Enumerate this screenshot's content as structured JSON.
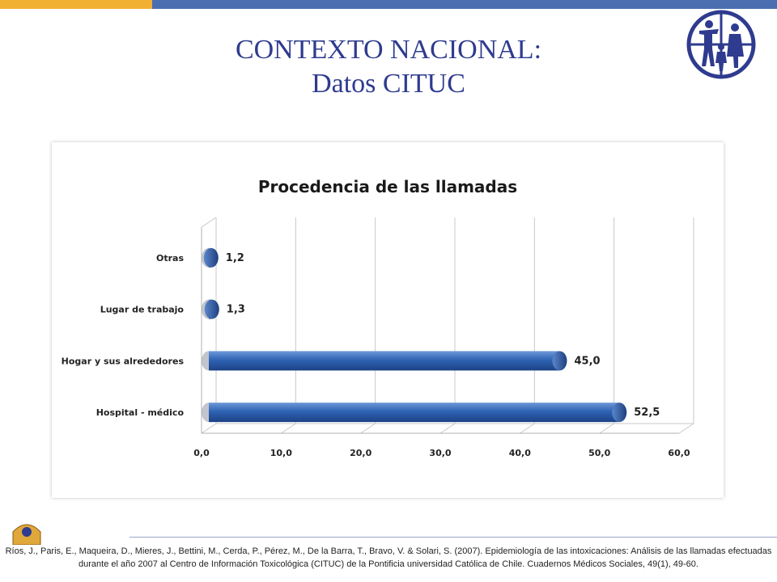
{
  "slide": {
    "title_line1": "CONTEXTO NACIONAL:",
    "title_line2": "Datos CITUC",
    "citation": "Ríos, J., Paris, E., Maqueira, D., Mieres, J., Bettini, M., Cerda, P., Pérez, M., De la Barra, T., Bravo, V. & Solari, S. (2007). Epidemiología de las intoxicaciones: Análisis de las llamadas efectuadas durante el año 2007 al Centro de Información Toxicológica (CITUC) de la Pontificia universidad Católica de Chile. Cuadernos Médicos Sociales, 49(1), 49-60."
  },
  "colors": {
    "accent_orange": "#f2b033",
    "accent_blue": "#4a6eb0",
    "title": "#2e3b8f",
    "bar": "#2f63b3"
  },
  "icons": [
    "family-logo-icon",
    "crest-logo-icon"
  ],
  "chart_data": {
    "type": "bar",
    "orientation": "horizontal",
    "title": "Procedencia de las llamadas",
    "categories": [
      "Otras",
      "Lugar de trabajo",
      "Hogar y sus alrededores",
      "Hospital - médico"
    ],
    "values": [
      1.2,
      1.3,
      45.0,
      52.5
    ],
    "value_labels": [
      "1,2",
      "1,3",
      "45,0",
      "52,5"
    ],
    "xlim": [
      0,
      60
    ],
    "x_ticks": [
      "0,0",
      "10,0",
      "20,0",
      "30,0",
      "40,0",
      "50,0",
      "60,0"
    ],
    "grid": true,
    "legend": "none"
  }
}
